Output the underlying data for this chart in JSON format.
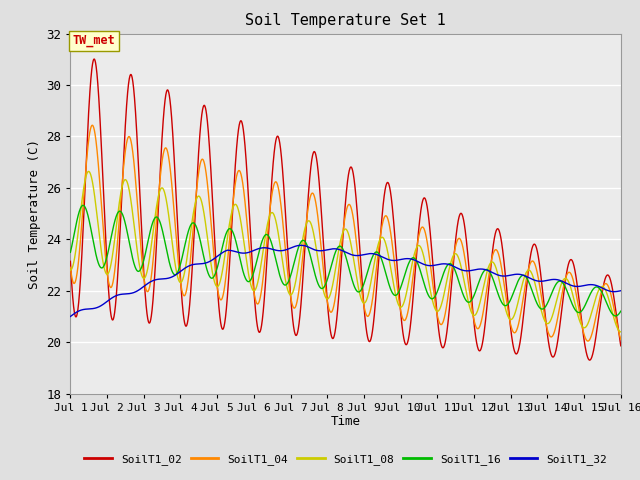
{
  "title": "Soil Temperature Set 1",
  "xlabel": "Time",
  "ylabel": "Soil Temperature (C)",
  "ylim": [
    18,
    32
  ],
  "xlim": [
    0,
    15
  ],
  "yticks": [
    18,
    20,
    22,
    24,
    26,
    28,
    30,
    32
  ],
  "xtick_positions": [
    0,
    1,
    2,
    3,
    4,
    5,
    6,
    7,
    8,
    9,
    10,
    11,
    12,
    13,
    14,
    15
  ],
  "xtick_labels": [
    "Jul 1",
    "Jul 2",
    "Jul 3",
    "Jul 4",
    "Jul 5",
    "Jul 6",
    "Jul 7",
    "Jul 8",
    "Jul 9",
    "Jul 10",
    "Jul 11",
    "Jul 12",
    "Jul 13",
    "Jul 14",
    "Jul 15",
    "Jul 16"
  ],
  "annotation": "TW_met",
  "series_colors": {
    "SoilT1_02": "#cc0000",
    "SoilT1_04": "#ff8800",
    "SoilT1_08": "#cccc00",
    "SoilT1_16": "#00bb00",
    "SoilT1_32": "#0000cc"
  },
  "background_color": "#e0e0e0",
  "plot_bg_color": "#ebebeb",
  "grid_color": "#ffffff",
  "linewidth": 1.0,
  "n_days": 15,
  "points_per_day": 288
}
